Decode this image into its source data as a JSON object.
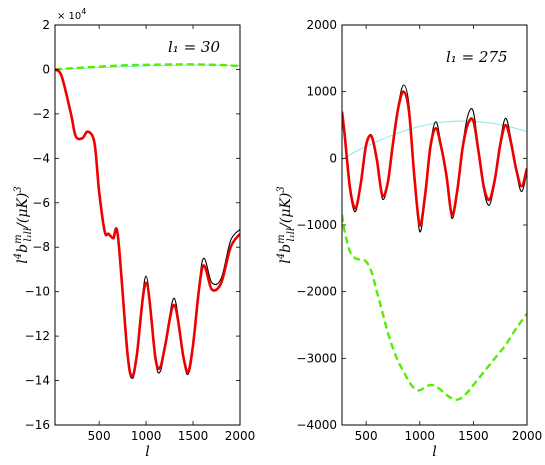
{
  "chart_data": [
    {
      "type": "line",
      "panel": "left",
      "annotation": "l₁ = 30",
      "xlabel": "l",
      "ylabel": "l⁴ b^m_{l₁ l l} / (μK)³",
      "ylabel_parts": {
        "base": "l",
        "sup": "4",
        "b": "b",
        "b_sup": "m",
        "b_sub": "l₁ll",
        "rest": "/(μK)",
        "rest_sup": "3"
      },
      "xlim": [
        30,
        2000
      ],
      "ylim": [
        -16,
        2
      ],
      "y_multiplier": "× 10",
      "y_multiplier_exp": "4",
      "x_ticks": [
        500,
        1000,
        1500,
        2000
      ],
      "x_tick_labels": [
        "500",
        "1000",
        "1500",
        "2000"
      ],
      "y_ticks": [
        -16,
        -14,
        -12,
        -10,
        -8,
        -6,
        -4,
        -2,
        0,
        2
      ],
      "y_tick_labels": [
        "−16",
        "−14",
        "−12",
        "−10",
        "−8",
        "−6",
        "−4",
        "−2",
        "0",
        "2"
      ],
      "series": [
        {
          "style": "thin-black",
          "color": "#000000",
          "x": [
            30,
            100,
            200,
            250,
            320,
            380,
            450,
            500,
            560,
            600,
            650,
            700,
            800,
            850,
            900,
            1000,
            1100,
            1150,
            1200,
            1300,
            1400,
            1450,
            1500,
            1600,
            1700,
            1800,
            1900,
            2000
          ],
          "y": [
            0,
            -0.3,
            -2.0,
            -3.0,
            -3.1,
            -2.8,
            -3.3,
            -5.5,
            -7.3,
            -7.4,
            -7.6,
            -7.5,
            -12.8,
            -13.9,
            -13.0,
            -9.3,
            -13.1,
            -13.6,
            -12.6,
            -10.3,
            -13.1,
            -13.7,
            -12.5,
            -8.6,
            -9.6,
            -9.4,
            -7.7,
            -7.2
          ]
        },
        {
          "style": "thick-red",
          "color": "#ee0000",
          "x": [
            30,
            100,
            200,
            250,
            320,
            380,
            450,
            500,
            560,
            600,
            650,
            700,
            800,
            850,
            900,
            1000,
            1100,
            1150,
            1200,
            1300,
            1400,
            1450,
            1500,
            1600,
            1700,
            1800,
            1900,
            2000
          ],
          "y": [
            0,
            -0.3,
            -2.0,
            -3.0,
            -3.1,
            -2.8,
            -3.3,
            -5.5,
            -7.3,
            -7.4,
            -7.6,
            -7.5,
            -12.7,
            -13.8,
            -12.9,
            -9.6,
            -13.0,
            -13.4,
            -12.5,
            -10.6,
            -13.0,
            -13.6,
            -12.4,
            -8.9,
            -9.9,
            -9.6,
            -8.0,
            -7.4
          ]
        },
        {
          "style": "dashed-green",
          "color": "#55ee00",
          "x": [
            30,
            200,
            400,
            600,
            800,
            1000,
            1200,
            1400,
            1600,
            1800,
            2000
          ],
          "y": [
            0,
            0.05,
            0.1,
            0.15,
            0.19,
            0.21,
            0.22,
            0.23,
            0.22,
            0.2,
            0.15
          ]
        },
        {
          "style": "thin-cyan",
          "color": "#7de6e6",
          "x": [
            30,
            400,
            800,
            1200,
            1600,
            2000
          ],
          "y": [
            0,
            0.06,
            0.13,
            0.18,
            0.2,
            0.18
          ]
        }
      ]
    },
    {
      "type": "line",
      "panel": "right",
      "annotation": "l₁ = 275",
      "xlabel": "l",
      "ylabel": "l⁴ b^m_{l₁ l l} / (μK)³",
      "ylabel_parts": {
        "base": "l",
        "sup": "4",
        "b": "b",
        "b_sup": "m",
        "b_sub": "l₁ll",
        "rest": "/(μK)",
        "rest_sup": "3"
      },
      "xlim": [
        275,
        2000
      ],
      "ylim": [
        -4000,
        2000
      ],
      "x_ticks": [
        500,
        1000,
        1500,
        2000
      ],
      "x_tick_labels": [
        "500",
        "1000",
        "1500",
        "2000"
      ],
      "y_ticks": [
        -4000,
        -3000,
        -2000,
        -1000,
        0,
        1000,
        2000
      ],
      "y_tick_labels": [
        "−4000",
        "−3000",
        "−2000",
        "−1000",
        "0",
        "1000",
        "2000"
      ],
      "series": [
        {
          "style": "thin-black",
          "color": "#000000",
          "x": [
            275,
            300,
            350,
            400,
            450,
            500,
            550,
            600,
            650,
            700,
            750,
            800,
            850,
            900,
            950,
            1000,
            1050,
            1100,
            1150,
            1200,
            1250,
            1300,
            1350,
            1400,
            1450,
            1500,
            1550,
            1600,
            1650,
            1700,
            1750,
            1800,
            1850,
            1900,
            1950,
            2000
          ],
          "y": [
            600,
            300,
            -500,
            -800,
            -400,
            200,
            350,
            0,
            -600,
            -400,
            250,
            800,
            1100,
            800,
            -300,
            -1100,
            -600,
            200,
            550,
            200,
            -300,
            -900,
            -500,
            200,
            650,
            700,
            100,
            -500,
            -700,
            -350,
            250,
            600,
            300,
            -200,
            -500,
            -200
          ]
        },
        {
          "style": "thick-red",
          "color": "#ee0000",
          "x": [
            275,
            300,
            350,
            400,
            450,
            500,
            550,
            600,
            650,
            700,
            750,
            800,
            850,
            900,
            950,
            1000,
            1050,
            1100,
            1150,
            1200,
            1250,
            1300,
            1350,
            1400,
            1450,
            1500,
            1550,
            1600,
            1650,
            1700,
            1750,
            1800,
            1850,
            1900,
            1950,
            2000
          ],
          "y": [
            700,
            350,
            -450,
            -750,
            -380,
            200,
            330,
            -20,
            -550,
            -380,
            220,
            760,
            1000,
            700,
            -280,
            -1000,
            -550,
            180,
            450,
            170,
            -270,
            -850,
            -480,
            160,
            520,
            560,
            80,
            -450,
            -620,
            -320,
            200,
            500,
            240,
            -170,
            -420,
            -150
          ]
        },
        {
          "style": "dashed-green",
          "color": "#55ee00",
          "x": [
            275,
            300,
            350,
            400,
            450,
            500,
            550,
            600,
            650,
            700,
            750,
            800,
            850,
            900,
            950,
            1000,
            1050,
            1100,
            1150,
            1200,
            1250,
            1300,
            1350,
            1400,
            1450,
            1500,
            1600,
            1700,
            1800,
            1900,
            2000
          ],
          "y": [
            -850,
            -1100,
            -1400,
            -1500,
            -1520,
            -1550,
            -1700,
            -2000,
            -2300,
            -2600,
            -2850,
            -3050,
            -3200,
            -3350,
            -3450,
            -3480,
            -3430,
            -3400,
            -3420,
            -3480,
            -3550,
            -3600,
            -3620,
            -3580,
            -3500,
            -3400,
            -3200,
            -3000,
            -2800,
            -2550,
            -2330
          ]
        },
        {
          "style": "thin-cyan",
          "color": "#7de6e6",
          "x": [
            275,
            400,
            600,
            800,
            1000,
            1200,
            1400,
            1600,
            1800,
            2000
          ],
          "y": [
            -20,
            100,
            250,
            380,
            480,
            540,
            560,
            540,
            490,
            400
          ]
        }
      ]
    }
  ]
}
